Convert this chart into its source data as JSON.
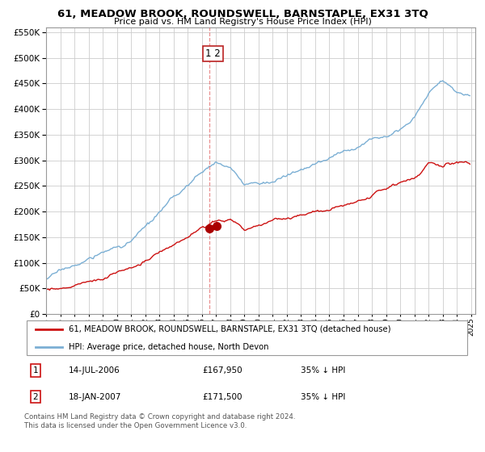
{
  "title": "61, MEADOW BROOK, ROUNDSWELL, BARNSTAPLE, EX31 3TQ",
  "subtitle": "Price paid vs. HM Land Registry's House Price Index (HPI)",
  "legend_line1": "61, MEADOW BROOK, ROUNDSWELL, BARNSTAPLE, EX31 3TQ (detached house)",
  "legend_line2": "HPI: Average price, detached house, North Devon",
  "transaction1_date": "14-JUL-2006",
  "transaction1_price": "£167,950",
  "transaction1_hpi": "35% ↓ HPI",
  "transaction2_date": "18-JAN-2007",
  "transaction2_price": "£171,500",
  "transaction2_hpi": "35% ↓ HPI",
  "footer": "Contains HM Land Registry data © Crown copyright and database right 2024.\nThis data is licensed under the Open Government Licence v3.0.",
  "hpi_color": "#7bafd4",
  "price_color": "#cc1111",
  "vline_color": "#dd4444",
  "background_color": "#ffffff",
  "grid_color": "#cccccc",
  "ylim": [
    0,
    560000
  ],
  "ylabel_ticks": [
    0,
    50000,
    100000,
    150000,
    200000,
    250000,
    300000,
    350000,
    400000,
    450000,
    500000,
    550000
  ],
  "xstart_year": 1995,
  "xend_year": 2025,
  "t1_year_float": 2006.54,
  "t1_price": 167950,
  "t2_year_float": 2007.05,
  "t2_price": 171500
}
